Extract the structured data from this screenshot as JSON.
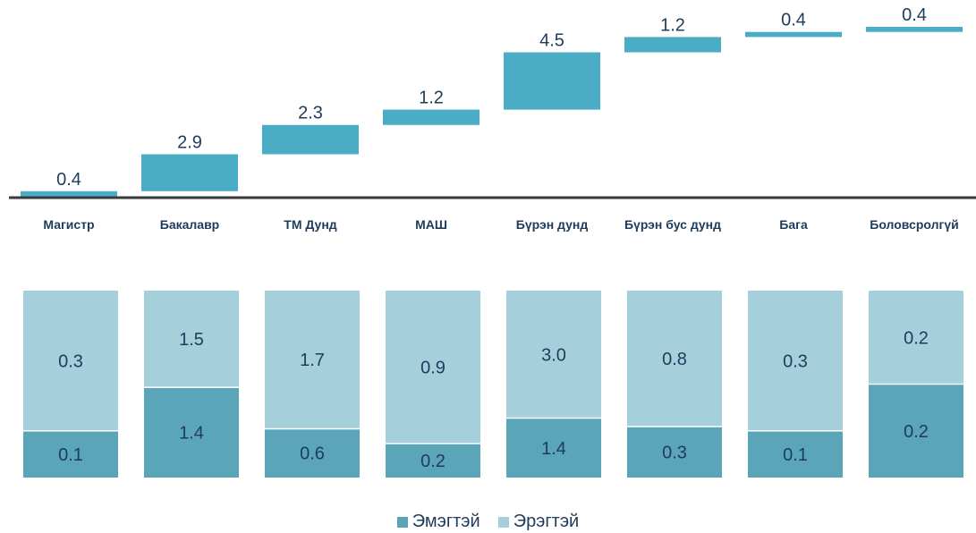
{
  "chart_data": [
    {
      "type": "waterfall",
      "categories": [
        "Магистр",
        "Бакалавр",
        "ТМ Дунд",
        "МАШ",
        "Бүрэн дунд",
        "Бүрэн бус дунд",
        "Бага",
        "Боловсролгүй"
      ],
      "values": [
        0.4,
        2.9,
        2.3,
        1.2,
        4.5,
        1.2,
        0.4,
        0.4
      ],
      "color": "#4bacc6"
    },
    {
      "type": "bar",
      "stacked": true,
      "percent": true,
      "categories": [
        "Магистр",
        "Бакалавр",
        "ТМ Дунд",
        "МАШ",
        "Бүрэн дунд",
        "Бүрэн бус дунд",
        "Бага",
        "Боловсролгүй"
      ],
      "series": [
        {
          "name": "Эмэгтэй",
          "values": [
            0.1,
            1.4,
            0.6,
            0.2,
            1.4,
            0.3,
            0.1,
            0.2
          ],
          "color": "#5ba5b9"
        },
        {
          "name": "Эрэгтэй",
          "values": [
            0.3,
            1.5,
            1.7,
            0.9,
            3.0,
            0.8,
            0.3,
            0.2
          ],
          "color": "#a6cfdc"
        }
      ],
      "legend_position": "bottom"
    }
  ]
}
